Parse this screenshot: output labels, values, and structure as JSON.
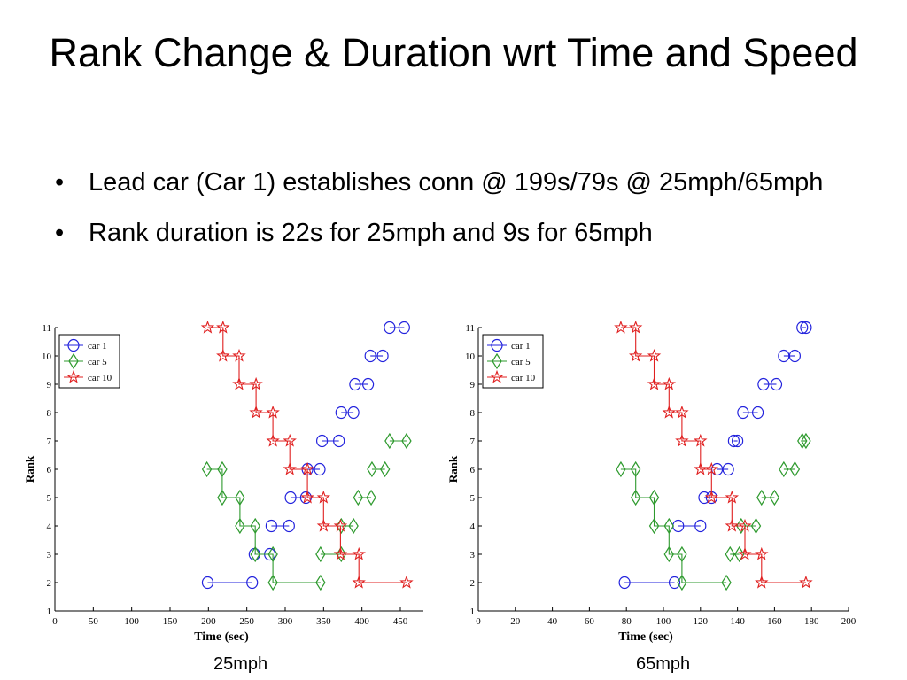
{
  "slide": {
    "title": "Rank Change & Duration wrt Time and Speed",
    "bullets": [
      "Lead car (Car 1) establishes conn @ 199s/79s @ 25mph/65mph",
      "Rank duration is 22s for 25mph and 9s for 65mph"
    ]
  },
  "colors": {
    "car1": "#2222dd",
    "car5": "#2e9a2e",
    "car10": "#e02020"
  },
  "chart_data": [
    {
      "type": "line",
      "caption": "25mph",
      "xlabel": "Time (sec)",
      "ylabel": "Rank",
      "xlim": [
        0,
        480
      ],
      "ylim": [
        1,
        11
      ],
      "xticks": [
        0,
        50,
        100,
        150,
        200,
        250,
        300,
        350,
        400,
        450
      ],
      "yticks": [
        1,
        2,
        3,
        4,
        5,
        6,
        7,
        8,
        9,
        10,
        11
      ],
      "grid": false,
      "legend": "top-left",
      "series": [
        {
          "name": "car  1",
          "marker": "circle",
          "color": "#2222dd",
          "segments": [
            [
              [
                199,
                2
              ],
              [
                257,
                2
              ]
            ],
            [
              [
                260,
                3
              ],
              [
                280,
                3
              ]
            ],
            [
              [
                282,
                4
              ],
              [
                305,
                4
              ]
            ],
            [
              [
                307,
                5
              ],
              [
                327,
                5
              ]
            ],
            [
              [
                329,
                6
              ],
              [
                345,
                6
              ]
            ],
            [
              [
                348,
                7
              ],
              [
                370,
                7
              ]
            ],
            [
              [
                373,
                8
              ],
              [
                389,
                8
              ]
            ],
            [
              [
                391,
                9
              ],
              [
                408,
                9
              ]
            ],
            [
              [
                411,
                10
              ],
              [
                427,
                10
              ]
            ],
            [
              [
                436,
                11
              ],
              [
                455,
                11
              ]
            ]
          ]
        },
        {
          "name": "car  5",
          "marker": "diamond",
          "color": "#2e9a2e",
          "points": [
            [
              198,
              6
            ],
            [
              218,
              6
            ],
            [
              218,
              5
            ],
            [
              241,
              5
            ],
            [
              241,
              4
            ],
            [
              261,
              4
            ],
            [
              261,
              3
            ],
            [
              284,
              3
            ],
            [
              284,
              2
            ],
            [
              346,
              2
            ]
          ],
          "segments": [
            [
              [
                346,
                3
              ],
              [
                373,
                3
              ]
            ],
            [
              [
                373,
                4
              ],
              [
                389,
                4
              ]
            ],
            [
              [
                395,
                5
              ],
              [
                412,
                5
              ]
            ],
            [
              [
                413,
                6
              ],
              [
                430,
                6
              ]
            ],
            [
              [
                436,
                7
              ],
              [
                458,
                7
              ]
            ]
          ]
        },
        {
          "name": "car 10",
          "marker": "star",
          "color": "#e02020",
          "points": [
            [
              199,
              11
            ],
            [
              219,
              11
            ],
            [
              219,
              10
            ],
            [
              240,
              10
            ],
            [
              240,
              9
            ],
            [
              262,
              9
            ],
            [
              262,
              8
            ],
            [
              284,
              8
            ],
            [
              284,
              7
            ],
            [
              306,
              7
            ],
            [
              306,
              6
            ],
            [
              329,
              6
            ],
            [
              329,
              5
            ],
            [
              350,
              5
            ],
            [
              350,
              4
            ],
            [
              372,
              4
            ],
            [
              372,
              3
            ],
            [
              396,
              3
            ],
            [
              396,
              2
            ],
            [
              458,
              2
            ]
          ]
        }
      ]
    },
    {
      "type": "line",
      "caption": "65mph",
      "xlabel": "Time (sec)",
      "ylabel": "Rank",
      "xlim": [
        0,
        200
      ],
      "ylim": [
        1,
        11
      ],
      "xticks": [
        0,
        20,
        40,
        60,
        80,
        100,
        120,
        140,
        160,
        180,
        200
      ],
      "yticks": [
        1,
        2,
        3,
        4,
        5,
        6,
        7,
        8,
        9,
        10,
        11
      ],
      "grid": false,
      "legend": "top-left",
      "series": [
        {
          "name": "car  1",
          "marker": "circle",
          "color": "#2222dd",
          "segments": [
            [
              [
                79,
                2
              ],
              [
                106,
                2
              ]
            ],
            [
              [
                108,
                4
              ],
              [
                120,
                4
              ]
            ],
            [
              [
                122,
                5
              ],
              [
                126,
                5
              ]
            ],
            [
              [
                129,
                6
              ],
              [
                135,
                6
              ]
            ],
            [
              [
                138,
                7
              ],
              [
                140,
                7
              ]
            ],
            [
              [
                143,
                8
              ],
              [
                151,
                8
              ]
            ],
            [
              [
                154,
                9
              ],
              [
                161,
                9
              ]
            ],
            [
              [
                165,
                10
              ],
              [
                171,
                10
              ]
            ],
            [
              [
                175,
                11
              ],
              [
                177,
                11
              ]
            ]
          ]
        },
        {
          "name": "car  5",
          "marker": "diamond",
          "color": "#2e9a2e",
          "points": [
            [
              77,
              6
            ],
            [
              85,
              6
            ],
            [
              85,
              5
            ],
            [
              95,
              5
            ],
            [
              95,
              4
            ],
            [
              103,
              4
            ],
            [
              103,
              3
            ],
            [
              110,
              3
            ],
            [
              110,
              2
            ],
            [
              134,
              2
            ]
          ],
          "segments": [
            [
              [
                136,
                3
              ],
              [
                141,
                3
              ]
            ],
            [
              [
                142,
                4
              ],
              [
                150,
                4
              ]
            ],
            [
              [
                153,
                5
              ],
              [
                160,
                5
              ]
            ],
            [
              [
                165,
                6
              ],
              [
                171,
                6
              ]
            ],
            [
              [
                175,
                7
              ],
              [
                177,
                7
              ]
            ]
          ]
        },
        {
          "name": "car 10",
          "marker": "star",
          "color": "#e02020",
          "points": [
            [
              77,
              11
            ],
            [
              85,
              11
            ],
            [
              85,
              10
            ],
            [
              95,
              10
            ],
            [
              95,
              9
            ],
            [
              103,
              9
            ],
            [
              103,
              8
            ],
            [
              110,
              8
            ],
            [
              110,
              7
            ],
            [
              120,
              7
            ],
            [
              120,
              6
            ],
            [
              126,
              6
            ],
            [
              126,
              5
            ],
            [
              137,
              5
            ],
            [
              137,
              4
            ],
            [
              144,
              4
            ],
            [
              144,
              3
            ],
            [
              153,
              3
            ],
            [
              153,
              2
            ],
            [
              177,
              2
            ]
          ]
        }
      ]
    }
  ]
}
